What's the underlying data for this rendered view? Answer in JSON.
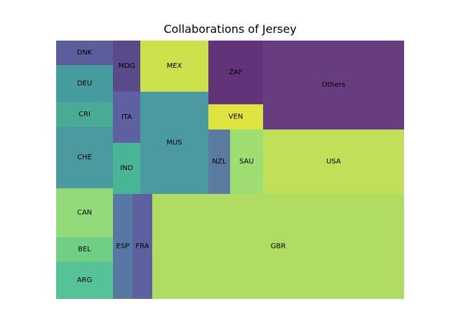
{
  "chart_data": {
    "type": "treemap",
    "title": "Collaborations of Jersey",
    "items": [
      {
        "label": "DNK",
        "color": "#5b5e9b"
      },
      {
        "label": "DEU",
        "color": "#469b9e"
      },
      {
        "label": "CRI",
        "color": "#4aab94"
      },
      {
        "label": "CHE",
        "color": "#4a9a9f"
      },
      {
        "label": "CAN",
        "color": "#93da7a"
      },
      {
        "label": "BEL",
        "color": "#6fcf85"
      },
      {
        "label": "ARG",
        "color": "#55c297"
      },
      {
        "label": "MDG",
        "color": "#5a4a89"
      },
      {
        "label": "ITA",
        "color": "#5e60a1"
      },
      {
        "label": "IND",
        "color": "#48b596"
      },
      {
        "label": "ESP",
        "color": "#5877a3"
      },
      {
        "label": "FRA",
        "color": "#5d61a0"
      },
      {
        "label": "MEX",
        "color": "#cde14d"
      },
      {
        "label": "MUS",
        "color": "#4a9aa2"
      },
      {
        "label": "ZAF",
        "color": "#63337a"
      },
      {
        "label": "VEN",
        "color": "#dfe441"
      },
      {
        "label": "NZL",
        "color": "#5b7ba3"
      },
      {
        "label": "SAU",
        "color": "#9ddd72"
      },
      {
        "label": "Others",
        "color": "#683d7f"
      },
      {
        "label": "USA",
        "color": "#c0e05a"
      },
      {
        "label": "GBR",
        "color": "#b0dc64"
      }
    ]
  }
}
